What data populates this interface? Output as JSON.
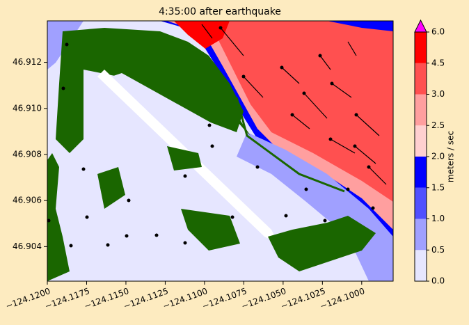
{
  "chart_data": {
    "type": "contourf",
    "title": "4:35:00 after earthquake",
    "xlim": [
      -124.12,
      -124.098
    ],
    "ylim": [
      46.9025,
      46.9138
    ],
    "xticks": [
      {
        "value": -124.12,
        "label": "−124.1200"
      },
      {
        "value": -124.1175,
        "label": "−124.1175"
      },
      {
        "value": -124.115,
        "label": "−124.1150"
      },
      {
        "value": -124.1125,
        "label": "−124.1125"
      },
      {
        "value": -124.11,
        "label": "−124.1100"
      },
      {
        "value": -124.1075,
        "label": "−124.1075"
      },
      {
        "value": -124.105,
        "label": "−124.1050"
      },
      {
        "value": -124.1025,
        "label": "−124.1025"
      },
      {
        "value": -124.1,
        "label": "−124.1000"
      }
    ],
    "yticks": [
      {
        "value": 46.904,
        "label": "46.904"
      },
      {
        "value": 46.906,
        "label": "46.906"
      },
      {
        "value": 46.908,
        "label": "46.908"
      },
      {
        "value": 46.91,
        "label": "46.910"
      },
      {
        "value": 46.912,
        "label": "46.912"
      }
    ],
    "colorbar": {
      "label": "meters / sec",
      "levels": [
        0,
        0.5,
        1,
        1.5,
        2,
        2.5,
        3,
        4.5,
        6
      ],
      "colors": [
        "#e6e6ff",
        "#a0a0ff",
        "#5050ff",
        "#0000ff",
        "#ffd0d0",
        "#ff9f9f",
        "#ff5050",
        "#ff0000"
      ],
      "extend_color": "#ff00ff",
      "ticks": [
        {
          "value": 0,
          "label": "0.0"
        },
        0.5,
        {
          "value": 1,
          "label": "1.0"
        },
        1.5,
        {
          "value": 2,
          "label": "2.0"
        },
        2.5,
        {
          "value": 3,
          "label": "3.0"
        },
        4.5,
        {
          "value": 6,
          "label": "6.0"
        }
      ]
    }
  }
}
